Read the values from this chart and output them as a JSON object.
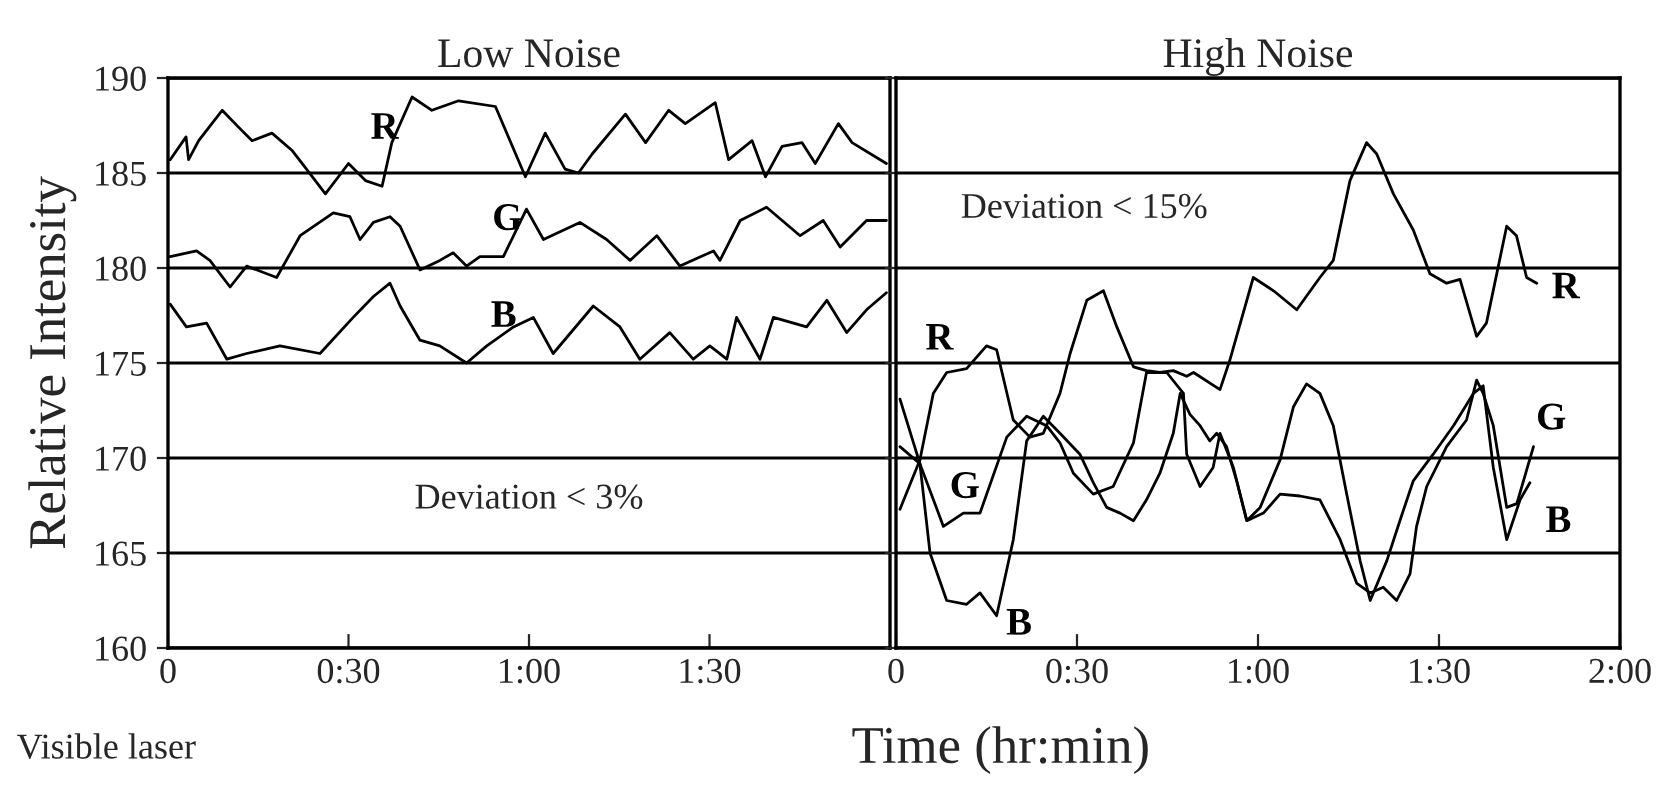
{
  "chart_data": [
    {
      "type": "line",
      "title": "Low Noise",
      "ylabel": "Relative Intensity",
      "xlim": [
        0,
        2
      ],
      "xticks": [
        0,
        {
          "value": 0.5,
          "label": "0:30"
        },
        {
          "value": 1,
          "label": "1:00"
        },
        {
          "value": 1.5,
          "label": "1:30"
        }
      ],
      "ylim": [
        160,
        190
      ],
      "yticks": [
        160,
        165,
        170,
        175,
        180,
        185,
        190
      ],
      "grid": "y",
      "marker": "none",
      "line_style": "solid",
      "series": [
        {
          "name": "R",
          "color": "#000000",
          "x": [
            0.006,
            0.05,
            0.057,
            0.085,
            0.15,
            0.196,
            0.233,
            0.288,
            0.343,
            0.38,
            0.436,
            0.5,
            0.547,
            0.593,
            0.62,
            0.676,
            0.731,
            0.805,
            0.907,
            0.99,
            1.045,
            1.1,
            1.137,
            1.175,
            1.267,
            1.323,
            1.387,
            1.433,
            1.516,
            1.553,
            1.618,
            1.655,
            1.701,
            1.756,
            1.793,
            1.857,
            1.895,
            1.99
          ],
          "values": [
            185.7,
            186.9,
            185.7,
            186.7,
            188.3,
            187.4,
            186.7,
            187.1,
            186.2,
            185.3,
            183.9,
            185.5,
            184.6,
            184.3,
            186.6,
            189.0,
            188.3,
            188.8,
            188.5,
            184.8,
            187.1,
            185.2,
            185.0,
            186.0,
            188.1,
            186.6,
            188.3,
            187.6,
            188.7,
            185.7,
            186.7,
            184.8,
            186.4,
            186.6,
            185.5,
            187.6,
            186.6,
            185.5
          ]
        },
        {
          "name": "G",
          "color": "#000000",
          "x": [
            0.006,
            0.079,
            0.116,
            0.172,
            0.218,
            0.301,
            0.366,
            0.458,
            0.504,
            0.532,
            0.569,
            0.615,
            0.643,
            0.698,
            0.753,
            0.79,
            0.827,
            0.864,
            0.929,
            0.993,
            1.04,
            1.141,
            1.215,
            1.28,
            1.354,
            1.418,
            1.511,
            1.529,
            1.585,
            1.658,
            1.751,
            1.815,
            1.862,
            1.935,
            1.99
          ],
          "values": [
            180.6,
            180.9,
            180.4,
            179.0,
            180.1,
            179.5,
            181.7,
            182.9,
            182.7,
            181.5,
            182.4,
            182.7,
            182.2,
            179.9,
            180.4,
            180.8,
            180.1,
            180.6,
            180.6,
            183.1,
            181.5,
            182.4,
            181.5,
            180.4,
            181.7,
            180.1,
            180.9,
            180.4,
            182.5,
            183.2,
            181.7,
            182.5,
            181.1,
            182.5,
            182.5
          ]
        },
        {
          "name": "B",
          "color": "#000000",
          "x": [
            0.006,
            0.051,
            0.107,
            0.163,
            0.218,
            0.31,
            0.421,
            0.513,
            0.569,
            0.615,
            0.643,
            0.698,
            0.753,
            0.827,
            0.883,
            0.957,
            1.012,
            1.067,
            1.178,
            1.252,
            1.307,
            1.39,
            1.455,
            1.501,
            1.548,
            1.575,
            1.64,
            1.677,
            1.769,
            1.825,
            1.88,
            1.935,
            1.99
          ],
          "values": [
            178.1,
            176.9,
            177.1,
            175.2,
            175.5,
            175.9,
            175.5,
            177.4,
            178.5,
            179.2,
            178.0,
            176.2,
            175.9,
            175.0,
            175.9,
            176.9,
            177.4,
            175.5,
            178.0,
            176.9,
            175.2,
            176.6,
            175.2,
            175.9,
            175.2,
            177.4,
            175.2,
            177.4,
            176.9,
            178.3,
            176.6,
            177.8,
            178.7
          ]
        }
      ],
      "annotations": [
        "Deviation < 3%",
        "Visible laser"
      ]
    },
    {
      "type": "line",
      "title": "High Noise",
      "xlabel": "Time (hr:min)",
      "xlim": [
        0,
        2
      ],
      "xticks": [
        0,
        {
          "value": 0.5,
          "label": "0:30"
        },
        {
          "value": 1,
          "label": "1:00"
        },
        {
          "value": 1.5,
          "label": "1:30"
        },
        {
          "value": 2,
          "label": "2:00"
        }
      ],
      "ylim": [
        160,
        190
      ],
      "yticks": [
        {
          "value": 160,
          "label": null
        },
        {
          "value": 165,
          "label": null
        },
        {
          "value": 170,
          "label": null
        },
        {
          "value": 175,
          "label": null
        },
        {
          "value": 180,
          "label": null
        },
        {
          "value": 185,
          "label": null
        },
        {
          "value": 190,
          "label": null
        }
      ],
      "tick_labels": "x",
      "grid": "y",
      "marker": "none",
      "line_style": "solid",
      "series": [
        {
          "name": "R",
          "color": "#000000",
          "x": [
            0.011,
            0.066,
            0.103,
            0.14,
            0.195,
            0.25,
            0.278,
            0.324,
            0.37,
            0.407,
            0.453,
            0.481,
            0.527,
            0.573,
            0.61,
            0.656,
            0.692,
            0.729,
            0.766,
            0.803,
            0.822,
            0.895,
            0.923,
            0.987,
            1.043,
            1.107,
            1.171,
            1.208,
            1.254,
            1.3,
            1.328,
            1.374,
            1.429,
            1.475,
            1.521,
            1.558,
            1.604,
            1.631,
            1.687,
            1.714,
            1.742,
            1.77
          ],
          "values": [
            167.3,
            169.9,
            173.4,
            174.5,
            174.7,
            175.9,
            175.7,
            172.0,
            171.1,
            171.3,
            173.4,
            175.5,
            178.3,
            178.8,
            176.9,
            174.8,
            174.6,
            174.5,
            174.6,
            174.3,
            174.5,
            173.6,
            175.2,
            179.5,
            178.8,
            177.8,
            179.5,
            180.4,
            184.6,
            186.6,
            186.0,
            183.9,
            182.0,
            179.7,
            179.2,
            179.4,
            176.4,
            177.1,
            182.2,
            181.7,
            179.5,
            179.2
          ]
        },
        {
          "name": "G",
          "color": "#000000",
          "x": [
            0.011,
            0.066,
            0.131,
            0.186,
            0.232,
            0.306,
            0.361,
            0.416,
            0.453,
            0.49,
            0.545,
            0.6,
            0.656,
            0.692,
            0.748,
            0.794,
            0.803,
            0.84,
            0.876,
            0.895,
            0.932,
            0.969,
            1.015,
            1.061,
            1.116,
            1.171,
            1.227,
            1.273,
            1.31,
            1.346,
            1.383,
            1.42,
            1.438,
            1.466,
            1.521,
            1.576,
            1.604,
            1.622,
            1.65,
            1.687,
            1.715,
            1.761
          ],
          "values": [
            170.6,
            169.7,
            166.4,
            167.1,
            167.1,
            171.1,
            172.2,
            171.7,
            170.8,
            169.2,
            168.1,
            168.5,
            170.8,
            174.5,
            174.5,
            173.4,
            170.2,
            168.5,
            169.5,
            171.3,
            169.5,
            166.7,
            167.1,
            168.1,
            168.0,
            167.8,
            165.7,
            163.4,
            162.9,
            163.2,
            162.5,
            163.9,
            166.4,
            168.5,
            170.6,
            172.0,
            174.1,
            173.4,
            171.7,
            167.4,
            167.6,
            170.6
          ]
        },
        {
          "name": "B",
          "color": "#000000",
          "x": [
            0.011,
            0.066,
            0.094,
            0.14,
            0.195,
            0.232,
            0.278,
            0.324,
            0.361,
            0.407,
            0.453,
            0.508,
            0.545,
            0.582,
            0.619,
            0.656,
            0.692,
            0.729,
            0.766,
            0.785,
            0.812,
            0.84,
            0.867,
            0.886,
            0.913,
            0.941,
            0.969,
            1.006,
            1.061,
            1.098,
            1.134,
            1.171,
            1.208,
            1.245,
            1.282,
            1.31,
            1.356,
            1.392,
            1.429,
            1.484,
            1.54,
            1.595,
            1.622,
            1.65,
            1.687,
            1.724,
            1.751
          ],
          "values": [
            173.1,
            169.7,
            165.0,
            162.5,
            162.3,
            162.9,
            161.7,
            165.7,
            170.9,
            172.2,
            171.3,
            170.2,
            168.7,
            167.4,
            167.1,
            166.7,
            167.8,
            169.2,
            171.3,
            173.4,
            172.3,
            171.7,
            170.9,
            171.3,
            170.6,
            168.8,
            166.7,
            167.4,
            169.9,
            172.7,
            173.9,
            173.4,
            171.7,
            168.1,
            164.6,
            162.5,
            164.6,
            166.7,
            168.8,
            170.2,
            171.7,
            173.4,
            173.8,
            169.5,
            165.7,
            167.8,
            168.7
          ]
        }
      ],
      "annotations": [
        "Deviation < 15%"
      ]
    }
  ]
}
